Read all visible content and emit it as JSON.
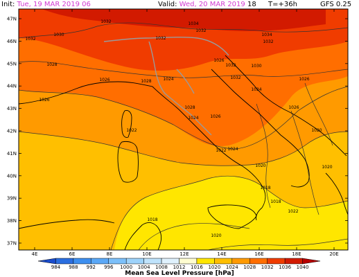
{
  "header": {
    "init_label": "Init:",
    "init_value": "Tue, 19 MAR 2019",
    "init_hour": "06",
    "valid_label": "Valid:",
    "valid_value": "Wed, 20 MAR 2019",
    "valid_hour": "18",
    "lead": "T=+36h",
    "model": "GFS 0.25"
  },
  "axes": {
    "lat_labels": [
      "47N",
      "46N",
      "45N",
      "44N",
      "43N",
      "42N",
      "41N",
      "40N",
      "39N",
      "38N",
      "37N"
    ],
    "lon_labels": [
      "4E",
      "6E",
      "8E",
      "10E",
      "12E",
      "14E",
      "16E",
      "18E",
      "20E"
    ]
  },
  "isobars": [
    {
      "text": "1032"
    },
    {
      "text": "1032"
    },
    {
      "text": "1032"
    },
    {
      "text": "1034"
    },
    {
      "text": "1032"
    },
    {
      "text": "1030"
    },
    {
      "text": "1028"
    },
    {
      "text": "1032"
    },
    {
      "text": "1034"
    },
    {
      "text": "1026"
    },
    {
      "text": "1032"
    },
    {
      "text": "1030"
    },
    {
      "text": "1032"
    },
    {
      "text": "1026"
    },
    {
      "text": "1028"
    },
    {
      "text": "1024"
    },
    {
      "text": "1026"
    },
    {
      "text": "1026"
    },
    {
      "text": "1024"
    },
    {
      "text": "1026"
    },
    {
      "text": "1028"
    },
    {
      "text": "1026"
    },
    {
      "text": "1024"
    },
    {
      "text": "1022"
    },
    {
      "text": "1024"
    },
    {
      "text": "1020"
    },
    {
      "text": "1022"
    },
    {
      "text": "1020"
    },
    {
      "text": "1020"
    },
    {
      "text": "1018"
    },
    {
      "text": "1018"
    },
    {
      "text": "1018"
    },
    {
      "text": "1020"
    },
    {
      "text": "1022"
    }
  ],
  "colorbar": {
    "labels": [
      "984",
      "988",
      "992",
      "996",
      "1000",
      "1004",
      "1008",
      "1012",
      "1016",
      "1020",
      "1024",
      "1028",
      "1032",
      "1036",
      "1040"
    ],
    "colors": [
      "#1a4ccc",
      "#2a6ee0",
      "#3d8ff0",
      "#5aa8f7",
      "#7cc0fa",
      "#9ed3fb",
      "#bfe3fc",
      "#dff1fd",
      "#fffdd0",
      "#ffe600",
      "#ffbf00",
      "#ff9a00",
      "#ff6e00",
      "#f03c00",
      "#d21a00",
      "#b80000"
    ],
    "title": "Mean Sea Level Pressure [hPa]"
  },
  "colors": {
    "land_outline": "#000000",
    "italy_border": "#9a9a9a",
    "header_value": "#d23bd2"
  }
}
